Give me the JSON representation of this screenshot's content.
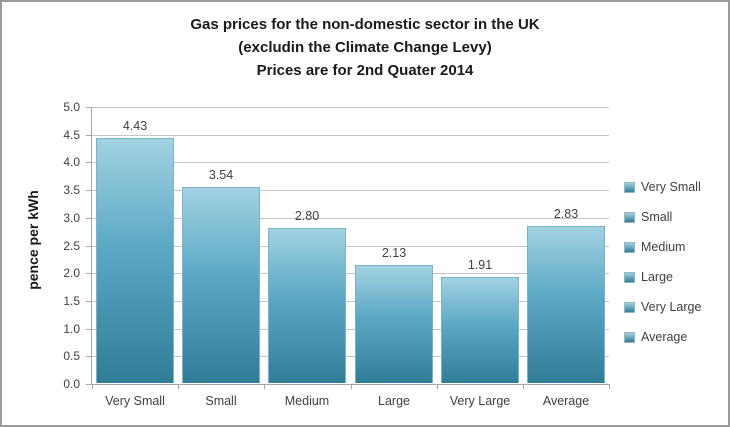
{
  "chart_data": {
    "type": "bar",
    "title_lines": [
      "Gas prices for the non-domestic sector in the UK",
      "(excludin the Climate Change Levy)",
      "Prices are for 2nd Quater 2014"
    ],
    "categories": [
      "Very Small",
      "Small",
      "Medium",
      "Large",
      "Very Large",
      "Average"
    ],
    "values": [
      4.43,
      3.54,
      2.8,
      2.13,
      1.91,
      2.83
    ],
    "value_labels": [
      "4.43",
      "3.54",
      "2.80",
      "2.13",
      "1.91",
      "2.83"
    ],
    "xlabel": "",
    "ylabel": "pence per kWh",
    "ylim": [
      0,
      5
    ],
    "ytick_step": 0.5,
    "ytick_labels": [
      "0.0",
      "0.5",
      "1.0",
      "1.5",
      "2.0",
      "2.5",
      "3.0",
      "3.5",
      "4.0",
      "4.5",
      "5.0"
    ],
    "grid": true,
    "legend": {
      "position": "right",
      "entries": [
        "Very Small",
        "Small",
        "Medium",
        "Large",
        "Very Large",
        "Average"
      ]
    },
    "colors": {
      "bar_gradient_top": "#a2d2e2",
      "bar_gradient_bottom": "#2f7d97",
      "gridline": "#c6c6c6",
      "axis_line": "#a6a6a6",
      "label_text": "#3f3f3f",
      "title_text": "#1a1a1a"
    }
  }
}
